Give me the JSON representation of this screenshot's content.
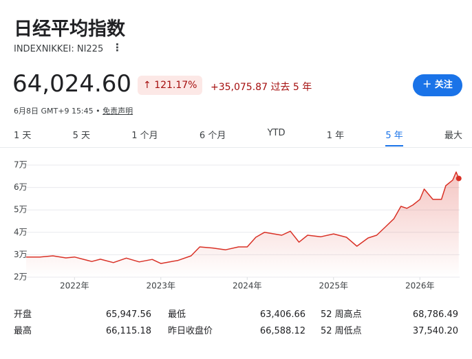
{
  "header": {
    "title": "日经平均指数",
    "ticker": "INDEXNIKKEI: NI225"
  },
  "quote": {
    "price": "64,024.60",
    "change_pct": "121.17%",
    "change_abs": "+35,075.87",
    "period": "过去 5 年",
    "timestamp": "6月8日 GMT+9 15:45",
    "disclaimer": "免责声明",
    "follow": "关注"
  },
  "tabs": [
    "1 天",
    "5 天",
    "1 个月",
    "6 个月",
    "YTD",
    "1 年",
    "5 年",
    "最大"
  ],
  "active_tab": 6,
  "chart_data": {
    "type": "line",
    "x": [
      2021.44,
      2021.6,
      2021.75,
      2021.9,
      2022.0,
      2022.2,
      2022.3,
      2022.45,
      2022.6,
      2022.75,
      2022.9,
      2023.0,
      2023.2,
      2023.35,
      2023.45,
      2023.6,
      2023.75,
      2023.9,
      2024.0,
      2024.1,
      2024.2,
      2024.4,
      2024.5,
      2024.6,
      2024.7,
      2024.85,
      2025.0,
      2025.15,
      2025.27,
      2025.4,
      2025.5,
      2025.6,
      2025.7,
      2025.78,
      2025.85,
      2025.92,
      2026.0,
      2026.05,
      2026.15,
      2026.25,
      2026.3,
      2026.38,
      2026.42,
      2026.45
    ],
    "series": [
      {
        "color": "#d93025",
        "values": [
          28949,
          29000,
          29500,
          28600,
          29000,
          27000,
          28000,
          26500,
          28500,
          26800,
          27900,
          26100,
          27500,
          29500,
          33500,
          33000,
          32200,
          33500,
          33500,
          37800,
          40000,
          38700,
          40500,
          35600,
          38700,
          38000,
          39300,
          37800,
          33800,
          37500,
          38700,
          42400,
          46100,
          51600,
          50700,
          52200,
          54700,
          59300,
          54700,
          54700,
          60800,
          63300,
          66900,
          64024.6
        ]
      }
    ],
    "xlim": [
      2021.44,
      2026.46
    ],
    "ylim": [
      20000,
      70000
    ],
    "yticks": [
      {
        "value": 20000,
        "label": "2万"
      },
      {
        "value": 30000,
        "label": "3万"
      },
      {
        "value": 40000,
        "label": "4万"
      },
      {
        "value": 50000,
        "label": "5万"
      },
      {
        "value": 60000,
        "label": "6万"
      },
      {
        "value": 70000,
        "label": "7万"
      }
    ],
    "xticks": [
      {
        "value": 2022,
        "label": "2022年"
      },
      {
        "value": 2023,
        "label": "2023年"
      },
      {
        "value": 2024,
        "label": "2024年"
      },
      {
        "value": 2025,
        "label": "2025年"
      },
      {
        "value": 2026,
        "label": "2026年"
      }
    ],
    "grid": true
  },
  "stats": [
    [
      {
        "label": "开盘",
        "value": "65,947.56"
      },
      {
        "label": "最高",
        "value": "66,115.18"
      }
    ],
    [
      {
        "label": "最低",
        "value": "63,406.66"
      },
      {
        "label": "昨日收盘价",
        "value": "66,588.12"
      }
    ],
    [
      {
        "label": "52 周高点",
        "value": "68,786.49"
      },
      {
        "label": "52 周低点",
        "value": "37,540.20"
      }
    ]
  ]
}
